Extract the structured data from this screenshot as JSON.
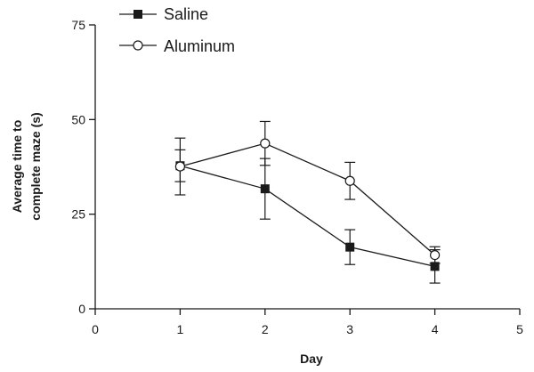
{
  "chart_data": {
    "type": "line",
    "title": "",
    "xlabel": "Day",
    "ylabel_lines": [
      "Average time to",
      "complete maze (s)"
    ],
    "xlim": [
      0,
      5
    ],
    "ylim": [
      0,
      75
    ],
    "xticks": [
      0,
      1,
      2,
      3,
      4,
      5
    ],
    "yticks": [
      0,
      25,
      50,
      75
    ],
    "grid": false,
    "legend_position": "top-left",
    "series": [
      {
        "name": "Saline",
        "marker": "filled-square",
        "color": "#1a1a1a",
        "x": [
          1,
          2,
          3,
          4
        ],
        "y": [
          37.8,
          31.7,
          16.3,
          11.2
        ],
        "error": [
          4.2,
          8.0,
          4.6,
          4.4
        ]
      },
      {
        "name": "Aluminum",
        "marker": "open-circle",
        "color": "#1a1a1a",
        "x": [
          1,
          2,
          3,
          4
        ],
        "y": [
          37.6,
          43.7,
          33.8,
          14.2
        ],
        "error": [
          7.5,
          5.8,
          4.9,
          2.2
        ]
      }
    ]
  }
}
